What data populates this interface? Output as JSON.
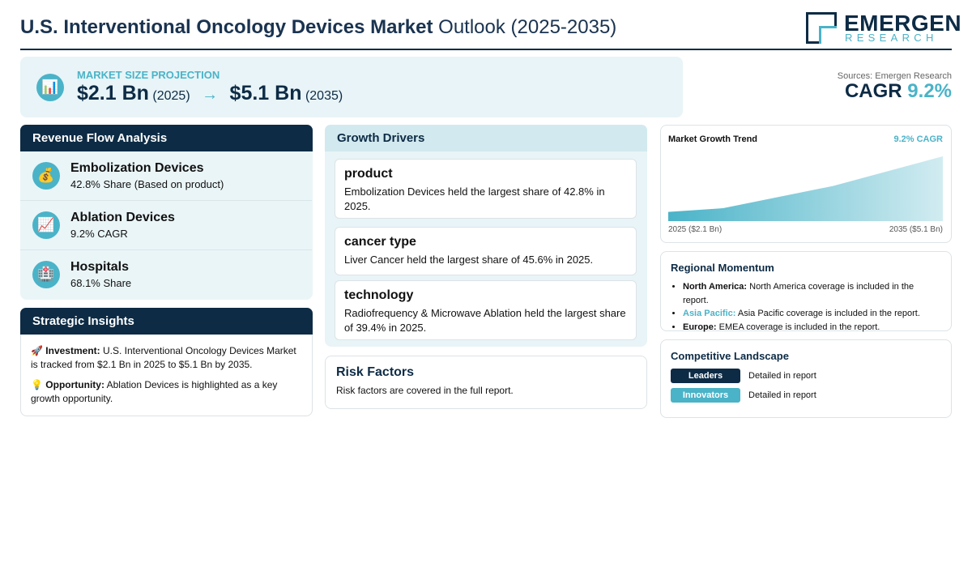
{
  "header": {
    "title_bold": "U.S. Interventional Oncology Devices Market",
    "title_rest": "Outlook (2025-2035)",
    "logo_top": "EMERGEN",
    "logo_bottom": "RESEARCH"
  },
  "market_size": {
    "icon": "📊",
    "label": "MARKET SIZE PROJECTION",
    "start_value": "$2.1 Bn",
    "start_year": "(2025)",
    "arrow": "→",
    "end_value": "$5.1 Bn",
    "end_year": "(2035)"
  },
  "sources": "Sources: Emergen Research",
  "cagr": {
    "label": "CAGR",
    "value": "9.2%"
  },
  "revenue_flow": {
    "title": "Revenue Flow Analysis",
    "items": [
      {
        "icon": "💰",
        "name": "Embolization Devices",
        "detail": "42.8% Share (Based on product)"
      },
      {
        "icon": "📈",
        "name": "Ablation Devices",
        "detail": "9.2% CAGR"
      },
      {
        "icon": "🏥",
        "name": "Hospitals",
        "detail": "68.1% Share"
      }
    ]
  },
  "strategic_insights": {
    "title": "Strategic Insights",
    "items": [
      {
        "icon": "🚀",
        "label": "Investment:",
        "text": "U.S. Interventional Oncology Devices Market is tracked from $2.1 Bn in 2025 to $5.1 Bn by 2035."
      },
      {
        "icon": "💡",
        "label": "Opportunity:",
        "text": "Ablation Devices is highlighted as a key growth opportunity."
      }
    ]
  },
  "growth_drivers": {
    "title": "Growth Drivers",
    "items": [
      {
        "title": "product",
        "text": "Embolization Devices held the largest share of 42.8% in 2025."
      },
      {
        "title": "cancer type",
        "text": "Liver Cancer held the largest share of 45.6% in 2025."
      },
      {
        "title": "technology",
        "text": "Radiofrequency & Microwave Ablation held the largest share of 39.4% in 2025."
      }
    ]
  },
  "risk_factors": {
    "title": "Risk Factors",
    "text": "Risk factors are covered in the full report."
  },
  "trend": {
    "title": "Market Growth Trend",
    "cagr_label": "9.2% CAGR",
    "start_label": "2025 ($2.1 Bn)",
    "end_label": "2035 ($5.1 Bn)",
    "x": [
      2025,
      2027,
      2031,
      2035
    ],
    "values": [
      2.1,
      2.3,
      3.5,
      5.1
    ],
    "xlim": [
      2025,
      2035
    ],
    "ylim": [
      1.6,
      5.1
    ],
    "color": "#4ab3c8"
  },
  "regional": {
    "title": "Regional Momentum",
    "items": [
      {
        "region": "North America:",
        "text": "North America coverage is included in the report.",
        "color": "#111111"
      },
      {
        "region": "Asia Pacific:",
        "text": "Asia Pacific coverage is included in the report.",
        "color": "#4ab3c8"
      },
      {
        "region": "Europe:",
        "text": "EMEA coverage is included in the report.",
        "color": "#111111"
      }
    ]
  },
  "competitive": {
    "title": "Competitive Landscape",
    "rows": [
      {
        "tag": "Leaders",
        "text": "Detailed in report",
        "color": "#0d2b45"
      },
      {
        "tag": "Innovators",
        "text": "Detailed in report",
        "color": "#4ab3c8"
      }
    ]
  }
}
